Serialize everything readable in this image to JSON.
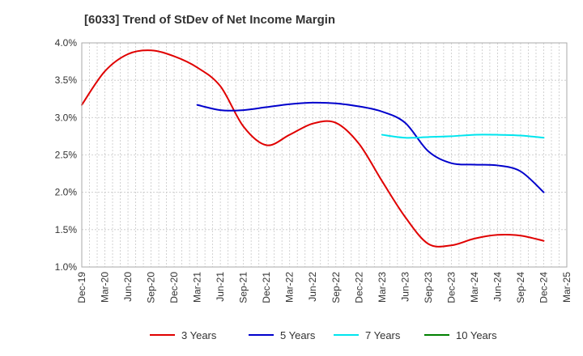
{
  "chart_data": {
    "type": "line",
    "title": "[6033]  Trend of StDev of Net Income Margin",
    "xlabel": "",
    "ylabel": "",
    "x": [
      "Dec-19",
      "Mar-20",
      "Jun-20",
      "Sep-20",
      "Dec-20",
      "Mar-21",
      "Jun-21",
      "Sep-21",
      "Dec-21",
      "Mar-22",
      "Jun-22",
      "Sep-22",
      "Dec-22",
      "Mar-23",
      "Jun-23",
      "Sep-23",
      "Dec-23",
      "Mar-24",
      "Jun-24",
      "Sep-24",
      "Dec-24"
    ],
    "x_ticks": [
      "Dec-19",
      "Mar-20",
      "Jun-20",
      "Sep-20",
      "Dec-20",
      "Mar-21",
      "Jun-21",
      "Sep-21",
      "Dec-21",
      "Mar-22",
      "Jun-22",
      "Sep-22",
      "Dec-22",
      "Mar-23",
      "Jun-23",
      "Sep-23",
      "Dec-23",
      "Mar-24",
      "Jun-24",
      "Sep-24",
      "Dec-24",
      "Mar-25"
    ],
    "y_ticks": [
      "1.0%",
      "1.5%",
      "2.0%",
      "2.5%",
      "3.0%",
      "3.5%",
      "4.0%"
    ],
    "ylim": [
      1.0,
      4.0
    ],
    "y_unit": "%",
    "grid": true,
    "legend_position": "bottom",
    "series": [
      {
        "name": "3 Years",
        "color": "#e00000",
        "values": [
          3.17,
          3.62,
          3.85,
          3.9,
          3.82,
          3.67,
          3.42,
          2.88,
          2.63,
          2.77,
          2.92,
          2.93,
          2.65,
          2.15,
          1.67,
          1.31,
          1.29,
          1.38,
          1.43,
          1.42,
          1.35
        ]
      },
      {
        "name": "5 Years",
        "color": "#0000cc",
        "values": [
          null,
          null,
          null,
          null,
          null,
          3.17,
          3.1,
          3.1,
          3.14,
          3.18,
          3.2,
          3.19,
          3.15,
          3.08,
          2.93,
          2.55,
          2.39,
          2.37,
          2.36,
          2.28,
          2.0
        ]
      },
      {
        "name": "7 Years",
        "color": "#00e5ee",
        "values": [
          null,
          null,
          null,
          null,
          null,
          null,
          null,
          null,
          null,
          null,
          null,
          null,
          null,
          2.77,
          2.73,
          2.74,
          2.75,
          2.77,
          2.77,
          2.76,
          2.73
        ]
      },
      {
        "name": "10 Years",
        "color": "#008000",
        "values": [
          null,
          null,
          null,
          null,
          null,
          null,
          null,
          null,
          null,
          null,
          null,
          null,
          null,
          null,
          null,
          null,
          null,
          null,
          null,
          null,
          null
        ]
      }
    ]
  }
}
